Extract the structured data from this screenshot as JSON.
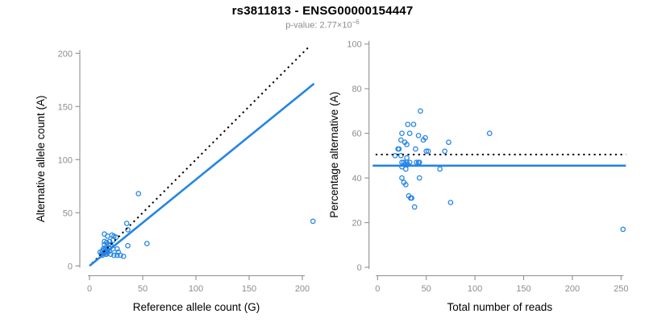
{
  "header": {
    "title": "rs3811813 - ENSG00000154447",
    "pvalue_text": "p-value: 2.77×10",
    "pvalue_exponent": "−6"
  },
  "colors": {
    "accent": "#2485E5",
    "axis": "#8f8f8f",
    "tick_text": "#8c8c8c",
    "line_black": "#000000",
    "title_text": "#000000",
    "subtitle_text": "#8c8c8c"
  },
  "chart_data": [
    {
      "type": "scatter",
      "title": "rs3811813 - ENSG00000154447",
      "subtitle": "p-value: 2.77×10^-6",
      "xlabel": "Reference allele count (G)",
      "ylabel": "Alternative allele count (A)",
      "xlim": [
        0,
        212
      ],
      "ylim": [
        0,
        207
      ],
      "xticks": [
        0,
        50,
        100,
        150,
        200
      ],
      "yticks": [
        0,
        50,
        100,
        150,
        200
      ],
      "grid": false,
      "lines": [
        {
          "name": "identity-line",
          "style": "dotted",
          "x1": 2.5,
          "y1": 2.5,
          "x2": 207.5,
          "y2": 207.5
        },
        {
          "name": "regression-line",
          "style": "solid",
          "x1": 0,
          "y1": 0,
          "x2": 211,
          "y2": 171.5
        }
      ],
      "points": [
        [
          10,
          13
        ],
        [
          11,
          11
        ],
        [
          12,
          14
        ],
        [
          12,
          10
        ],
        [
          13,
          16
        ],
        [
          13,
          12
        ],
        [
          14,
          30
        ],
        [
          14,
          23
        ],
        [
          14,
          20
        ],
        [
          14,
          15
        ],
        [
          14,
          12
        ],
        [
          15,
          17
        ],
        [
          15,
          13
        ],
        [
          15,
          11
        ],
        [
          16,
          22
        ],
        [
          16,
          15
        ],
        [
          16,
          13
        ],
        [
          16,
          11
        ],
        [
          17,
          28
        ],
        [
          17,
          15
        ],
        [
          17,
          13
        ],
        [
          18,
          20
        ],
        [
          18,
          17
        ],
        [
          19,
          23
        ],
        [
          19,
          14
        ],
        [
          20,
          20
        ],
        [
          20,
          11
        ],
        [
          21,
          29
        ],
        [
          22,
          24
        ],
        [
          22,
          16
        ],
        [
          23,
          28
        ],
        [
          23,
          10
        ],
        [
          25,
          27
        ],
        [
          26,
          16
        ],
        [
          26,
          10
        ],
        [
          27,
          13
        ],
        [
          29,
          10
        ],
        [
          32,
          9
        ],
        [
          36,
          19
        ],
        [
          35,
          40
        ],
        [
          36,
          34
        ],
        [
          46,
          68
        ],
        [
          54,
          21
        ],
        [
          210,
          42
        ]
      ]
    },
    {
      "type": "scatter",
      "xlabel": "Total number of reads",
      "ylabel": "Percentage alternative (A)",
      "xlim": [
        0,
        255
      ],
      "ylim": [
        0,
        100
      ],
      "xticks": [
        0,
        50,
        100,
        150,
        200,
        250
      ],
      "yticks": [
        0,
        20,
        40,
        60,
        80,
        100
      ],
      "grid": false,
      "lines": [
        {
          "name": "expected-percentage-line",
          "style": "dotted",
          "x1": -2,
          "y1": 50.5,
          "x2": 255,
          "y2": 50.5
        },
        {
          "name": "mean-percentage-line",
          "style": "solid",
          "x1": -5,
          "y1": 45.5,
          "x2": 255,
          "y2": 45.5
        }
      ],
      "points": [
        [
          44,
          70
        ],
        [
          31,
          64
        ],
        [
          37,
          64
        ],
        [
          25,
          60
        ],
        [
          33,
          60
        ],
        [
          42,
          59
        ],
        [
          47,
          57
        ],
        [
          49,
          58
        ],
        [
          115,
          60
        ],
        [
          24,
          57
        ],
        [
          28,
          56
        ],
        [
          73,
          56
        ],
        [
          30,
          55
        ],
        [
          21,
          53
        ],
        [
          22,
          53
        ],
        [
          39,
          53
        ],
        [
          18,
          50
        ],
        [
          24,
          50
        ],
        [
          50,
          52
        ],
        [
          52,
          52
        ],
        [
          69,
          52
        ],
        [
          30,
          49
        ],
        [
          42,
          47
        ],
        [
          43,
          47
        ],
        [
          40,
          47
        ],
        [
          25,
          47
        ],
        [
          27,
          47
        ],
        [
          28,
          46
        ],
        [
          30,
          47
        ],
        [
          31,
          46
        ],
        [
          33,
          47
        ],
        [
          25,
          45
        ],
        [
          29,
          44
        ],
        [
          64,
          44
        ],
        [
          25,
          40
        ],
        [
          43,
          40
        ],
        [
          27,
          38
        ],
        [
          29,
          37
        ],
        [
          32,
          32
        ],
        [
          35,
          31
        ],
        [
          34,
          31
        ],
        [
          38,
          27
        ],
        [
          75,
          29
        ],
        [
          252,
          17
        ]
      ]
    }
  ]
}
